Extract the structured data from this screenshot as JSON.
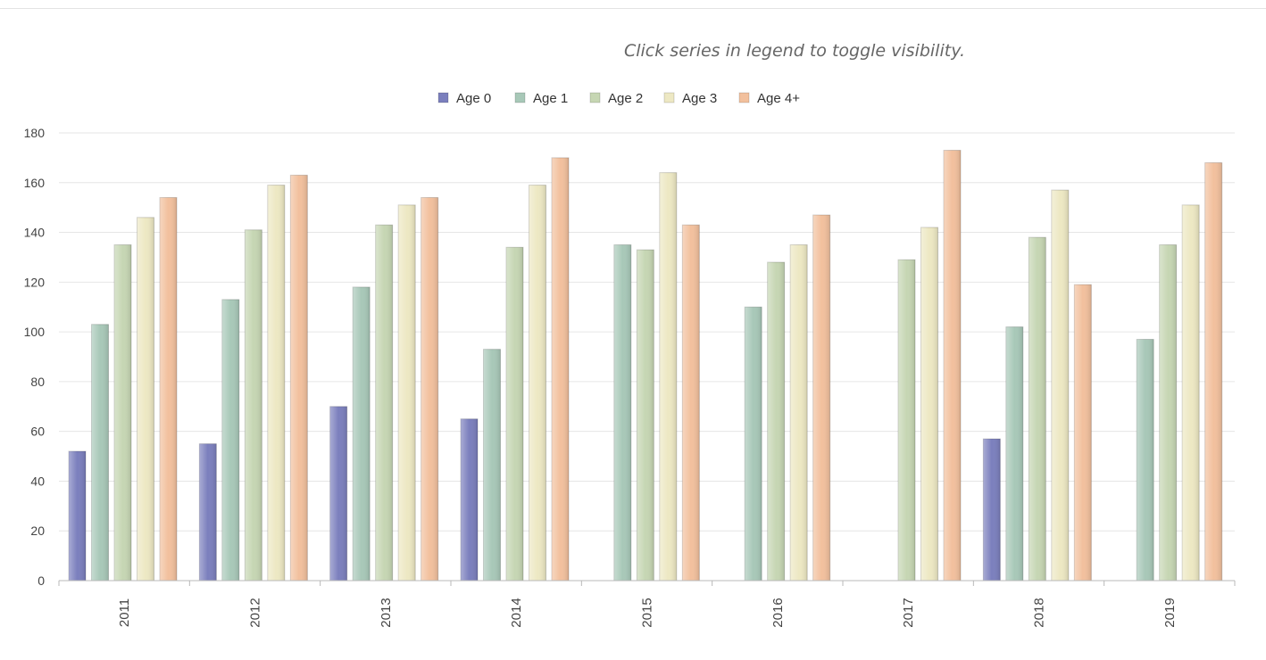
{
  "hint_text": "Click series in legend to toggle visibility.",
  "chart_data": {
    "type": "bar",
    "categories": [
      "2011",
      "2012",
      "2013",
      "2014",
      "2015",
      "2016",
      "2017",
      "2018",
      "2019"
    ],
    "ylim": [
      0,
      180
    ],
    "y_ticks": [
      0,
      20,
      40,
      60,
      80,
      100,
      120,
      140,
      160,
      180
    ],
    "grid": true,
    "legend_position": "top-center",
    "xlabel": "",
    "ylabel": "",
    "title": "",
    "series": [
      {
        "name": "Age 0",
        "color": "#7b7fbd",
        "values": [
          52,
          55,
          70,
          65,
          null,
          null,
          null,
          57,
          null
        ]
      },
      {
        "name": "Age 1",
        "color": "#a8c8b8",
        "values": [
          103,
          113,
          118,
          93,
          135,
          110,
          null,
          102,
          97
        ]
      },
      {
        "name": "Age 2",
        "color": "#c6d6b3",
        "values": [
          135,
          141,
          143,
          134,
          133,
          128,
          129,
          138,
          135
        ]
      },
      {
        "name": "Age 3",
        "color": "#ede8c3",
        "values": [
          146,
          159,
          151,
          159,
          164,
          135,
          142,
          157,
          151
        ]
      },
      {
        "name": "Age 4+",
        "color": "#f2c09d",
        "values": [
          154,
          163,
          154,
          170,
          143,
          147,
          173,
          119,
          168
        ]
      }
    ]
  }
}
